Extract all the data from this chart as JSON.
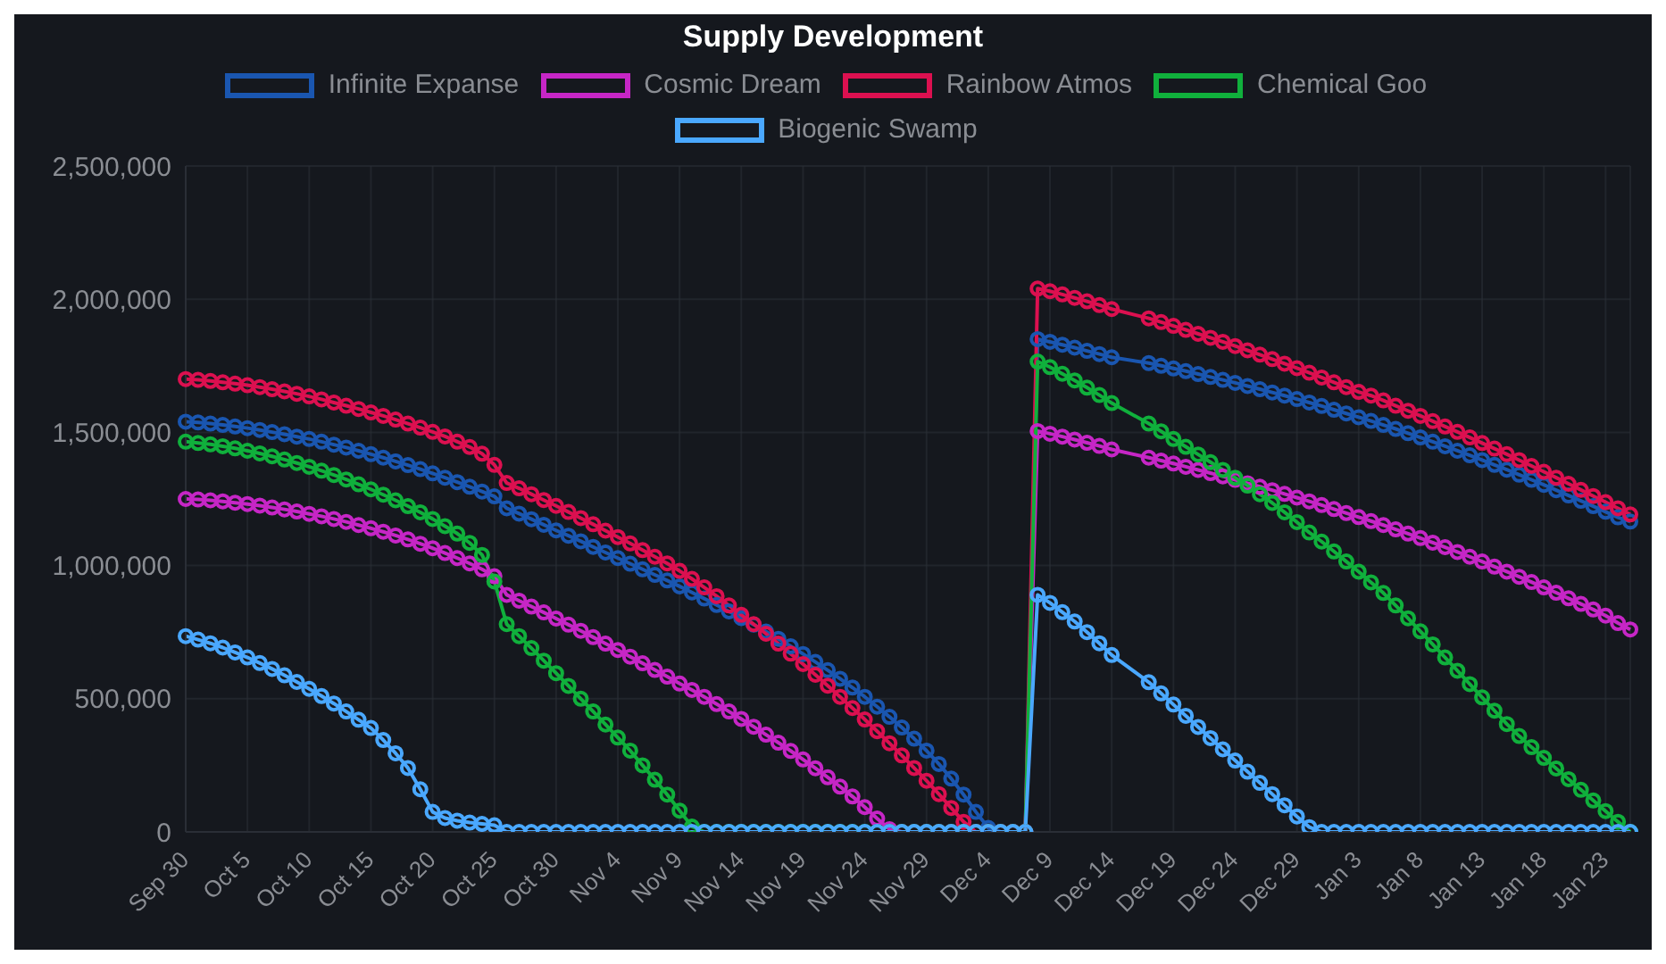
{
  "chart_data": {
    "type": "line",
    "title": "Supply Development",
    "legend": "top",
    "grid": true,
    "marker": "circle",
    "categories": [
      "Sep 30",
      null,
      null,
      null,
      null,
      "Oct 5",
      null,
      null,
      null,
      null,
      "Oct 10",
      null,
      null,
      null,
      null,
      "Oct 15",
      null,
      null,
      null,
      null,
      "Oct 20",
      null,
      null,
      null,
      null,
      "Oct 25",
      null,
      null,
      null,
      null,
      "Oct 30",
      null,
      null,
      null,
      null,
      "Nov 4",
      null,
      null,
      null,
      null,
      "Nov 9",
      null,
      null,
      null,
      null,
      "Nov 14",
      null,
      null,
      null,
      null,
      "Nov 19",
      null,
      null,
      null,
      null,
      "Nov 24",
      null,
      null,
      null,
      null,
      "Nov 29",
      null,
      null,
      null,
      null,
      "Dec 4",
      null,
      null,
      null,
      null,
      "Dec 9",
      null,
      null,
      null,
      null,
      "Dec 14",
      null,
      null,
      null,
      null,
      "Dec 19",
      null,
      null,
      null,
      null,
      "Dec 24",
      null,
      null,
      null,
      null,
      "Dec 29",
      null,
      null,
      null,
      null,
      "Jan 3",
      null,
      null,
      null,
      null,
      "Jan 8",
      null,
      null,
      null,
      null,
      "Jan 13",
      null,
      null,
      null,
      null,
      "Jan 18",
      null,
      null,
      null,
      null,
      "Jan 23",
      null,
      null
    ],
    "ylim": [
      0,
      2500000
    ],
    "yticks": [
      {
        "value": 0,
        "label": "0"
      },
      {
        "value": 500000,
        "label": "500,000"
      },
      {
        "value": 1000000,
        "label": "1,000,000"
      },
      {
        "value": 1500000,
        "label": "1,500,000"
      },
      {
        "value": 2000000,
        "label": "2,000,000"
      },
      {
        "value": 2500000,
        "label": "2,500,000"
      }
    ],
    "series": [
      {
        "name": "Infinite Expanse",
        "color": "#1a56b0",
        "values": [
          1540000,
          1537000,
          1533000,
          1528000,
          1522000,
          1516000,
          1509000,
          1501000,
          1493000,
          1484000,
          1475000,
          1465000,
          1454000,
          1443000,
          1431000,
          1418000,
          1405000,
          1391000,
          1377000,
          1362000,
          1346000,
          1330000,
          1313000,
          1296000,
          1278000,
          1260000,
          1215000,
          1195000,
          1174000,
          1153000,
          1132000,
          1112000,
          1091000,
          1070000,
          1049000,
          1028000,
          1007000,
          986000,
          965000,
          944000,
          922000,
          899000,
          876000,
          852000,
          828000,
          803000,
          778000,
          752000,
          725000,
          697000,
          668000,
          638000,
          607000,
          575000,
          542000,
          507000,
          470000,
          432000,
          392000,
          350000,
          305000,
          255000,
          200000,
          140000,
          75000,
          15000,
          0,
          0,
          0,
          1850000,
          1840000,
          1829000,
          1818000,
          1806000,
          1794000,
          1782000,
          null,
          null,
          1760000,
          1750000,
          1740000,
          1730000,
          1719000,
          1708000,
          1697000,
          1686000,
          1674000,
          1662000,
          1650000,
          1638000,
          1625000,
          1612000,
          1599000,
          1585000,
          1571000,
          1557000,
          1543000,
          1528000,
          1513000,
          1497000,
          1481000,
          1465000,
          1448000,
          1431000,
          1414000,
          1396000,
          1378000,
          1360000,
          1341000,
          1322000,
          1303000,
          1283000,
          1263000,
          1243000,
          1223000,
          1202000,
          1181000,
          1165000
        ]
      },
      {
        "name": "Cosmic Dream",
        "color": "#c626c6",
        "values": [
          1250000,
          1248000,
          1245000,
          1241000,
          1236000,
          1231000,
          1225000,
          1218000,
          1211000,
          1203000,
          1194000,
          1185000,
          1175000,
          1164000,
          1152000,
          1140000,
          1127000,
          1113000,
          1098000,
          1082000,
          1065000,
          1047000,
          1028000,
          1008000,
          986000,
          960000,
          890000,
          868000,
          846000,
          824000,
          801000,
          778000,
          755000,
          731000,
          707000,
          683000,
          658000,
          633000,
          608000,
          583000,
          557000,
          533000,
          507000,
          480000,
          452000,
          424000,
          395000,
          365000,
          335000,
          304000,
          272000,
          239000,
          205000,
          170000,
          133000,
          93000,
          50000,
          10000,
          0,
          0,
          0,
          0,
          0,
          0,
          0,
          0,
          0,
          0,
          0,
          1505000,
          1495000,
          1484000,
          1473000,
          1461000,
          1449000,
          1436000,
          null,
          null,
          1405000,
          1394000,
          1383000,
          1371000,
          1359000,
          1347000,
          1335000,
          1322000,
          1309000,
          1296000,
          1283000,
          1269000,
          1255000,
          1241000,
          1227000,
          1212000,
          1197000,
          1182000,
          1167000,
          1152000,
          1136000,
          1120000,
          1103000,
          1086000,
          1069000,
          1051000,
          1033000,
          1015000,
          996000,
          977000,
          958000,
          938000,
          918000,
          898000,
          877000,
          856000,
          835000,
          812000,
          784000,
          760000
        ]
      },
      {
        "name": "Rainbow Atmos",
        "color": "#dc1050",
        "values": [
          1700000,
          1697000,
          1693000,
          1688000,
          1683000,
          1677000,
          1670000,
          1662000,
          1654000,
          1645000,
          1635000,
          1624000,
          1612000,
          1600000,
          1588000,
          1575000,
          1562000,
          1548000,
          1533000,
          1518000,
          1502000,
          1485000,
          1465000,
          1445000,
          1420000,
          1378000,
          1310000,
          1290000,
          1268000,
          1246000,
          1224000,
          1201000,
          1178000,
          1155000,
          1131000,
          1107000,
          1083000,
          1058000,
          1033000,
          1008000,
          980000,
          950000,
          918000,
          885000,
          850000,
          815000,
          780000,
          744000,
          707000,
          669000,
          630000,
          590000,
          549000,
          507000,
          465000,
          422000,
          378000,
          333000,
          287000,
          240000,
          192000,
          142000,
          90000,
          38000,
          0,
          0,
          0,
          0,
          0,
          2040000,
          2030000,
          2018000,
          2005000,
          1992000,
          1978000,
          1963000,
          null,
          null,
          1928000,
          1914000,
          1900000,
          1885000,
          1870000,
          1855000,
          1840000,
          1824000,
          1808000,
          1792000,
          1775000,
          1758000,
          1741000,
          1724000,
          1706000,
          1688000,
          1670000,
          1652000,
          1638000,
          1620000,
          1600000,
          1581000,
          1562000,
          1542000,
          1522000,
          1502000,
          1481000,
          1460000,
          1439000,
          1418000,
          1396000,
          1374000,
          1352000,
          1330000,
          1307000,
          1284000,
          1261000,
          1238000,
          1215000,
          1192000
        ]
      },
      {
        "name": "Chemical Goo",
        "color": "#10b03c",
        "values": [
          1465000,
          1460000,
          1455000,
          1448000,
          1440000,
          1431000,
          1421000,
          1410000,
          1398000,
          1385000,
          1371000,
          1356000,
          1340000,
          1323000,
          1305000,
          1286000,
          1266000,
          1245000,
          1223000,
          1200000,
          1175000,
          1148000,
          1120000,
          1085000,
          1040000,
          940000,
          780000,
          735000,
          690000,
          643000,
          596000,
          548000,
          500000,
          452000,
          403000,
          354000,
          305000,
          250000,
          196000,
          140000,
          80000,
          20000,
          0,
          0,
          0,
          0,
          0,
          0,
          0,
          0,
          0,
          0,
          0,
          0,
          0,
          0,
          0,
          0,
          0,
          0,
          0,
          0,
          0,
          0,
          0,
          0,
          0,
          0,
          0,
          1766000,
          1745000,
          1720000,
          1695000,
          1668000,
          1640000,
          1610000,
          null,
          null,
          1533000,
          1504000,
          1475000,
          1446000,
          1417000,
          1388000,
          1359000,
          1330000,
          1300000,
          1268000,
          1235000,
          1200000,
          1163000,
          1124000,
          1090000,
          1053000,
          1015000,
          977000,
          937000,
          897000,
          850000,
          802000,
          753000,
          704000,
          655000,
          605000,
          555000,
          505000,
          455000,
          405000,
          360000,
          318000,
          278000,
          238000,
          198000,
          158000,
          118000,
          78000,
          38000,
          0
        ]
      },
      {
        "name": "Biogenic Swamp",
        "color": "#4aa8ff",
        "values": [
          735000,
          722000,
          708000,
          692000,
          674000,
          655000,
          634000,
          612000,
          588000,
          563000,
          537000,
          510000,
          482000,
          452000,
          421000,
          390000,
          345000,
          295000,
          240000,
          160000,
          75000,
          52000,
          42000,
          35000,
          30000,
          25000,
          0,
          0,
          0,
          0,
          0,
          0,
          0,
          0,
          0,
          0,
          0,
          0,
          0,
          0,
          0,
          0,
          0,
          0,
          0,
          0,
          0,
          0,
          0,
          0,
          0,
          0,
          0,
          0,
          0,
          0,
          0,
          0,
          0,
          0,
          0,
          0,
          0,
          0,
          0,
          0,
          0,
          0,
          0,
          890000,
          860000,
          825000,
          790000,
          750000,
          708000,
          664000,
          null,
          null,
          562000,
          520000,
          478000,
          436000,
          394000,
          352000,
          310000,
          268000,
          226000,
          184000,
          142000,
          100000,
          58000,
          18000,
          0,
          0,
          0,
          0,
          0,
          0,
          0,
          0,
          0,
          0,
          0,
          0,
          0,
          0,
          0,
          0,
          0,
          0,
          0,
          0,
          0,
          0,
          0,
          0,
          0,
          0
        ]
      }
    ]
  }
}
